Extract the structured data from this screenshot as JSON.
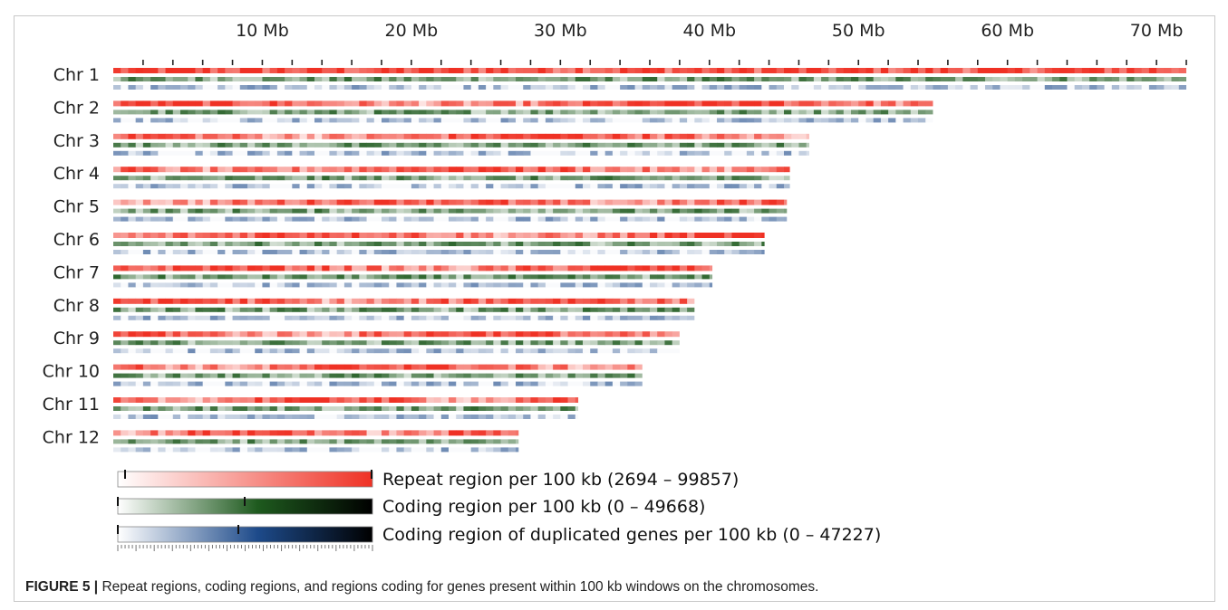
{
  "figure": {
    "caption_label": "FIGURE 5 |",
    "caption_text": " Repeat regions, coding regions, and regions coding for genes present within 100 kb windows on the chromosomes."
  },
  "chart_data": {
    "type": "heatmap",
    "x_unit": "Mb",
    "xlim": [
      0,
      72
    ],
    "x_ticks": [
      {
        "value": 10,
        "label": "10 Mb"
      },
      {
        "value": 20,
        "label": "20 Mb"
      },
      {
        "value": 30,
        "label": "30 Mb"
      },
      {
        "value": 40,
        "label": "40 Mb"
      },
      {
        "value": 50,
        "label": "50 Mb"
      },
      {
        "value": 60,
        "label": "60 Mb"
      },
      {
        "value": 70,
        "label": "70 Mb"
      }
    ],
    "window_size_kb": 100,
    "chromosomes": [
      {
        "name": "Chr 1",
        "length_mb": 72.0
      },
      {
        "name": "Chr 2",
        "length_mb": 55.0
      },
      {
        "name": "Chr 3",
        "length_mb": 46.7
      },
      {
        "name": "Chr 4",
        "length_mb": 45.4
      },
      {
        "name": "Chr 5",
        "length_mb": 45.2
      },
      {
        "name": "Chr 6",
        "length_mb": 43.7
      },
      {
        "name": "Chr 7",
        "length_mb": 40.2
      },
      {
        "name": "Chr 8",
        "length_mb": 39.0
      },
      {
        "name": "Chr 9",
        "length_mb": 38.0
      },
      {
        "name": "Chr 10",
        "length_mb": 35.5
      },
      {
        "name": "Chr 11",
        "length_mb": 31.2
      },
      {
        "name": "Chr 12",
        "length_mb": 27.2
      }
    ],
    "tracks": [
      {
        "name": "Repeat region per 100 kb",
        "min": 2694,
        "max": 99857,
        "color_low": "#ffffff",
        "color_high": "#ef3124"
      },
      {
        "name": "Coding region per 100 kb",
        "min": 0,
        "max": 49668,
        "color_low": "#ffffff",
        "color_mid": "#1e5a1e",
        "color_high": "#000000"
      },
      {
        "name": "Coding region of duplicated genes per 100 kb",
        "min": 0,
        "max": 47227,
        "color_low": "#ffffff",
        "color_mid": "#1d4a8a",
        "color_high": "#000000"
      }
    ],
    "legend": [
      {
        "label": "Repeat region per 100 kb (2694 – 99857)"
      },
      {
        "label": "Coding region per 100 kb (0 – 49668)"
      },
      {
        "label": "Coding region of duplicated genes per 100 kb (0 – 47227)"
      }
    ]
  }
}
